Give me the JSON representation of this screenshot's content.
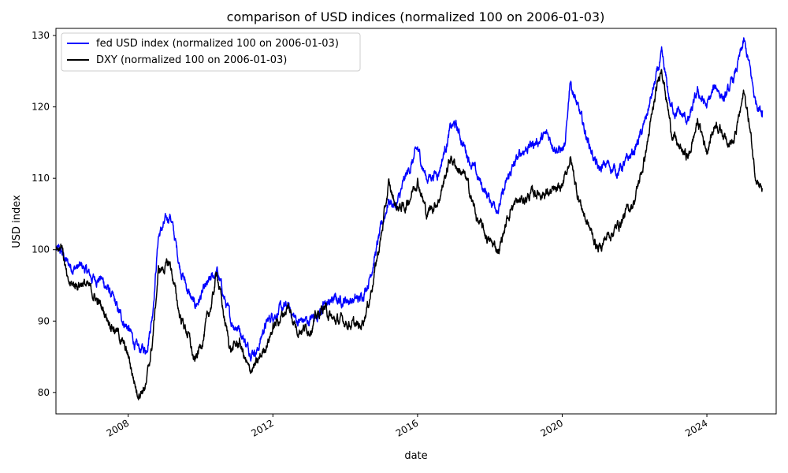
{
  "chart_data": {
    "type": "line",
    "title": "comparison of USD indices (normalized 100 on 2006-01-03)",
    "xlabel": "date",
    "ylabel": "USD index",
    "xlim": [
      "2006-01-01",
      "2025-12-01"
    ],
    "ylim": [
      77,
      131
    ],
    "x_ticks": [
      "2008",
      "2012",
      "2016",
      "2020",
      "2024"
    ],
    "y_ticks": [
      80,
      90,
      100,
      110,
      120,
      130
    ],
    "grid": false,
    "legend": "upper-left",
    "colors": {
      "fed": "#0000ff",
      "dxy": "#000000"
    },
    "series": [
      {
        "name": "fed USD index (normalized 100 on 2006-01-03)",
        "color": "#0000ff",
        "points": [
          [
            "2006-01-03",
            100
          ],
          [
            "2006-03-01",
            99.5
          ],
          [
            "2006-05-01",
            98
          ],
          [
            "2006-07-01",
            97.5
          ],
          [
            "2006-10-01",
            97.5
          ],
          [
            "2007-01-01",
            96
          ],
          [
            "2007-04-01",
            96
          ],
          [
            "2007-07-01",
            94
          ],
          [
            "2007-10-01",
            91
          ],
          [
            "2008-01-01",
            89
          ],
          [
            "2008-04-01",
            86
          ],
          [
            "2008-07-01",
            86
          ],
          [
            "2008-09-01",
            91
          ],
          [
            "2008-11-01",
            102
          ],
          [
            "2009-03-01",
            105
          ],
          [
            "2009-06-01",
            98
          ],
          [
            "2009-09-01",
            94
          ],
          [
            "2009-11-01",
            92
          ],
          [
            "2010-02-01",
            94
          ],
          [
            "2010-05-01",
            96
          ],
          [
            "2010-06-15",
            97
          ],
          [
            "2010-09-01",
            93
          ],
          [
            "2010-11-01",
            90
          ],
          [
            "2011-02-01",
            89
          ],
          [
            "2011-05-01",
            86
          ],
          [
            "2011-08-01",
            86
          ],
          [
            "2011-10-01",
            89
          ],
          [
            "2012-01-01",
            91
          ],
          [
            "2012-06-01",
            92
          ],
          [
            "2012-09-01",
            90
          ],
          [
            "2013-01-01",
            90
          ],
          [
            "2013-06-01",
            92
          ],
          [
            "2013-09-01",
            93
          ],
          [
            "2014-01-01",
            93
          ],
          [
            "2014-06-01",
            93
          ],
          [
            "2014-09-01",
            96
          ],
          [
            "2015-01-01",
            103
          ],
          [
            "2015-03-15",
            107
          ],
          [
            "2015-06-01",
            106
          ],
          [
            "2015-09-01",
            110
          ],
          [
            "2016-01-01",
            114
          ],
          [
            "2016-04-01",
            110
          ],
          [
            "2016-08-01",
            111
          ],
          [
            "2016-12-01",
            117
          ],
          [
            "2017-01-15",
            117.5
          ],
          [
            "2017-05-01",
            114
          ],
          [
            "2017-09-01",
            110
          ],
          [
            "2018-01-01",
            107
          ],
          [
            "2018-04-01",
            106
          ],
          [
            "2018-08-01",
            111
          ],
          [
            "2018-12-01",
            114
          ],
          [
            "2019-04-01",
            115
          ],
          [
            "2019-08-01",
            116
          ],
          [
            "2019-12-01",
            114
          ],
          [
            "2020-02-01",
            114
          ],
          [
            "2020-03-20",
            124
          ],
          [
            "2020-06-01",
            120
          ],
          [
            "2020-09-01",
            116
          ],
          [
            "2021-01-01",
            111
          ],
          [
            "2021-04-01",
            112
          ],
          [
            "2021-07-01",
            111
          ],
          [
            "2021-10-01",
            112
          ],
          [
            "2022-01-01",
            114
          ],
          [
            "2022-04-01",
            117
          ],
          [
            "2022-07-01",
            122
          ],
          [
            "2022-10-01",
            127
          ],
          [
            "2023-01-01",
            120
          ],
          [
            "2023-04-01",
            119
          ],
          [
            "2023-07-01",
            118
          ],
          [
            "2023-10-01",
            122
          ],
          [
            "2024-01-01",
            120
          ],
          [
            "2024-04-01",
            123
          ],
          [
            "2024-07-01",
            121
          ],
          [
            "2024-10-01",
            124
          ],
          [
            "2025-01-10",
            129
          ],
          [
            "2025-03-01",
            126
          ],
          [
            "2025-05-01",
            121
          ],
          [
            "2025-07-15",
            119.5
          ]
        ]
      },
      {
        "name": "DXY (normalized 100 on 2006-01-03)",
        "color": "#000000",
        "points": [
          [
            "2006-01-03",
            100
          ],
          [
            "2006-03-01",
            101
          ],
          [
            "2006-05-01",
            95
          ],
          [
            "2006-07-01",
            95
          ],
          [
            "2006-10-01",
            95.5
          ],
          [
            "2007-01-01",
            94
          ],
          [
            "2007-04-01",
            92
          ],
          [
            "2007-07-01",
            90
          ],
          [
            "2007-10-01",
            88
          ],
          [
            "2008-01-01",
            85
          ],
          [
            "2008-04-01",
            80
          ],
          [
            "2008-07-01",
            81
          ],
          [
            "2008-09-01",
            87
          ],
          [
            "2008-11-01",
            97
          ],
          [
            "2009-03-01",
            98
          ],
          [
            "2009-06-01",
            91
          ],
          [
            "2009-09-01",
            88
          ],
          [
            "2009-11-01",
            84
          ],
          [
            "2010-02-01",
            88
          ],
          [
            "2010-05-01",
            93
          ],
          [
            "2010-06-15",
            97
          ],
          [
            "2010-09-01",
            90
          ],
          [
            "2010-11-01",
            86
          ],
          [
            "2011-02-01",
            87
          ],
          [
            "2011-05-01",
            83
          ],
          [
            "2011-08-01",
            84
          ],
          [
            "2011-10-01",
            86
          ],
          [
            "2012-01-01",
            89
          ],
          [
            "2012-06-01",
            92
          ],
          [
            "2012-09-01",
            89
          ],
          [
            "2013-01-01",
            89
          ],
          [
            "2013-06-01",
            92
          ],
          [
            "2013-09-01",
            90
          ],
          [
            "2014-01-01",
            90
          ],
          [
            "2014-06-01",
            89
          ],
          [
            "2014-09-01",
            93
          ],
          [
            "2015-01-01",
            102
          ],
          [
            "2015-03-15",
            109
          ],
          [
            "2015-06-01",
            106
          ],
          [
            "2015-09-01",
            106
          ],
          [
            "2016-01-01",
            110
          ],
          [
            "2016-04-01",
            105
          ],
          [
            "2016-08-01",
            107
          ],
          [
            "2016-12-01",
            113
          ],
          [
            "2017-01-15",
            112
          ],
          [
            "2017-05-01",
            110
          ],
          [
            "2017-09-01",
            104
          ],
          [
            "2018-01-01",
            101
          ],
          [
            "2018-04-01",
            100
          ],
          [
            "2018-08-01",
            106
          ],
          [
            "2018-12-01",
            107
          ],
          [
            "2019-04-01",
            108
          ],
          [
            "2019-08-01",
            108
          ],
          [
            "2019-12-01",
            108
          ],
          [
            "2020-02-01",
            110
          ],
          [
            "2020-03-20",
            113
          ],
          [
            "2020-06-01",
            108
          ],
          [
            "2020-09-01",
            104
          ],
          [
            "2021-01-01",
            100
          ],
          [
            "2021-04-01",
            102
          ],
          [
            "2021-07-01",
            103
          ],
          [
            "2021-10-01",
            105
          ],
          [
            "2022-01-01",
            107
          ],
          [
            "2022-04-01",
            112
          ],
          [
            "2022-07-01",
            119
          ],
          [
            "2022-10-01",
            126
          ],
          [
            "2023-01-01",
            117
          ],
          [
            "2023-04-01",
            114
          ],
          [
            "2023-07-01",
            113
          ],
          [
            "2023-10-01",
            118
          ],
          [
            "2024-01-01",
            114
          ],
          [
            "2024-04-01",
            118
          ],
          [
            "2024-07-01",
            116
          ],
          [
            "2024-10-01",
            115
          ],
          [
            "2025-01-10",
            122
          ],
          [
            "2025-03-01",
            118
          ],
          [
            "2025-05-01",
            111
          ],
          [
            "2025-07-15",
            108.5
          ]
        ]
      }
    ]
  }
}
